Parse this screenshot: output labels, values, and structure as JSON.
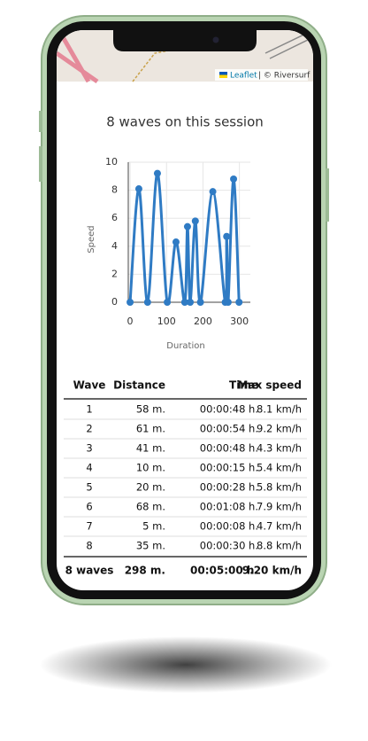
{
  "map": {
    "attribution_link": "Leaflet",
    "attribution": "| © Riversurf"
  },
  "chart_data": {
    "type": "line",
    "title": "8 waves on this session",
    "xlabel": "Duration",
    "ylabel": "Speed",
    "x": [
      0,
      24,
      48,
      75,
      102,
      126,
      150,
      157.5,
      165,
      179,
      193,
      227,
      261,
      265,
      269,
      284,
      299
    ],
    "series": [
      {
        "name": "Speed",
        "color": "#2f7bc4",
        "values": [
          0,
          8.1,
          0,
          9.2,
          0,
          4.3,
          0,
          5.4,
          0,
          5.8,
          0,
          7.9,
          0,
          4.7,
          0,
          8.8,
          0
        ]
      }
    ],
    "xlim": [
      -5,
      330
    ],
    "xticks": [
      0,
      100,
      200,
      300
    ],
    "ylim": [
      0,
      10
    ],
    "yticks": [
      0,
      2,
      4,
      6,
      8,
      10
    ],
    "grid": true
  },
  "table": {
    "header": [
      "Wave",
      "Distance",
      "Time",
      "Max speed"
    ],
    "rows": [
      [
        "1",
        "58 m.",
        "00:00:48 h.",
        "8.1 km/h"
      ],
      [
        "2",
        "61 m.",
        "00:00:54 h.",
        "9.2 km/h"
      ],
      [
        "3",
        "41 m.",
        "00:00:48 h.",
        "4.3 km/h"
      ],
      [
        "4",
        "10 m.",
        "00:00:15 h.",
        "5.4 km/h"
      ],
      [
        "5",
        "20 m.",
        "00:00:28 h.",
        "5.8 km/h"
      ],
      [
        "6",
        "68 m.",
        "00:01:08 h.",
        "7.9 km/h"
      ],
      [
        "7",
        "5 m.",
        "00:00:08 h.",
        "4.7 km/h"
      ],
      [
        "8",
        "35 m.",
        "00:00:30 h.",
        "8.8 km/h"
      ]
    ],
    "footer": [
      "8 waves",
      "298 m.",
      "00:05:00 h.",
      "9.20 km/h"
    ]
  }
}
